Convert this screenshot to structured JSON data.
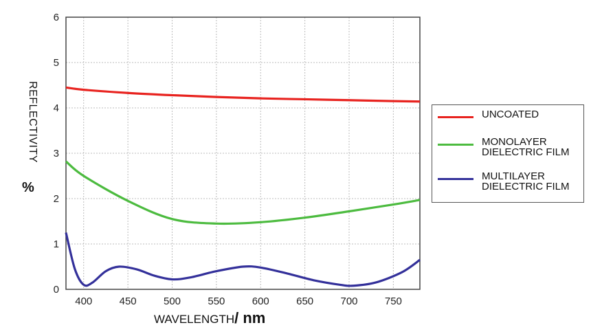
{
  "chart_data": {
    "type": "line",
    "xlabel": "WAVELENGTH",
    "xunit": "/ nm",
    "ylabel": "REFLECTIVITY",
    "yunit": "%",
    "xlim": [
      380,
      780
    ],
    "ylim": [
      0,
      6
    ],
    "xticks": [
      400,
      450,
      500,
      550,
      600,
      650,
      700,
      750
    ],
    "yticks": [
      0,
      1,
      2,
      3,
      4,
      5,
      6
    ],
    "grid": true,
    "legend_position": "right",
    "series": [
      {
        "name": "UNCOATED",
        "color": "#e8231f",
        "x": [
          380,
          400,
          450,
          500,
          550,
          600,
          650,
          700,
          750,
          780
        ],
        "y": [
          4.45,
          4.4,
          4.33,
          4.28,
          4.24,
          4.21,
          4.19,
          4.17,
          4.15,
          4.14
        ]
      },
      {
        "name": "MONOLAYER\nDIELECTRIC FILM",
        "color": "#4cbb3f",
        "x": [
          380,
          400,
          450,
          500,
          550,
          600,
          650,
          700,
          750,
          780
        ],
        "y": [
          2.82,
          2.5,
          1.95,
          1.55,
          1.45,
          1.48,
          1.58,
          1.72,
          1.87,
          1.97
        ]
      },
      {
        "name": "MULTILAYER\nDIELECTRIC FILM",
        "color": "#33309a",
        "x": [
          380,
          390,
          400,
          410,
          425,
          440,
          460,
          480,
          500,
          520,
          550,
          580,
          600,
          630,
          660,
          690,
          705,
          730,
          760,
          780
        ],
        "y": [
          1.25,
          0.45,
          0.1,
          0.15,
          0.4,
          0.5,
          0.44,
          0.3,
          0.22,
          0.26,
          0.4,
          0.5,
          0.48,
          0.35,
          0.2,
          0.1,
          0.08,
          0.15,
          0.38,
          0.65
        ]
      }
    ]
  }
}
